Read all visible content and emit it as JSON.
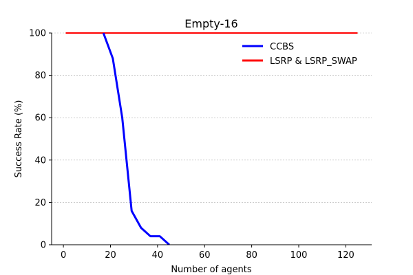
{
  "chart_data": {
    "type": "line",
    "title": "Empty-16",
    "xlabel": "Number of agents",
    "ylabel": "Success Rate (%)",
    "xlim": [
      -5,
      131
    ],
    "ylim": [
      0,
      100
    ],
    "xticks": [
      0,
      20,
      40,
      60,
      80,
      100,
      120
    ],
    "yticks": [
      0,
      20,
      40,
      60,
      80,
      100
    ],
    "grid": "horizontal-dashed",
    "legend_position": "upper-right",
    "series": [
      {
        "name": "CCBS",
        "color": "#0000ff",
        "x": [
          17,
          21,
          25,
          29,
          33,
          37,
          41,
          45
        ],
        "y": [
          100,
          88,
          60,
          16,
          8,
          4,
          4,
          0
        ]
      },
      {
        "name": "LSRP & LSRP_SWAP",
        "color": "#ff0000",
        "x": [
          1,
          125
        ],
        "y": [
          100,
          100
        ]
      }
    ]
  }
}
